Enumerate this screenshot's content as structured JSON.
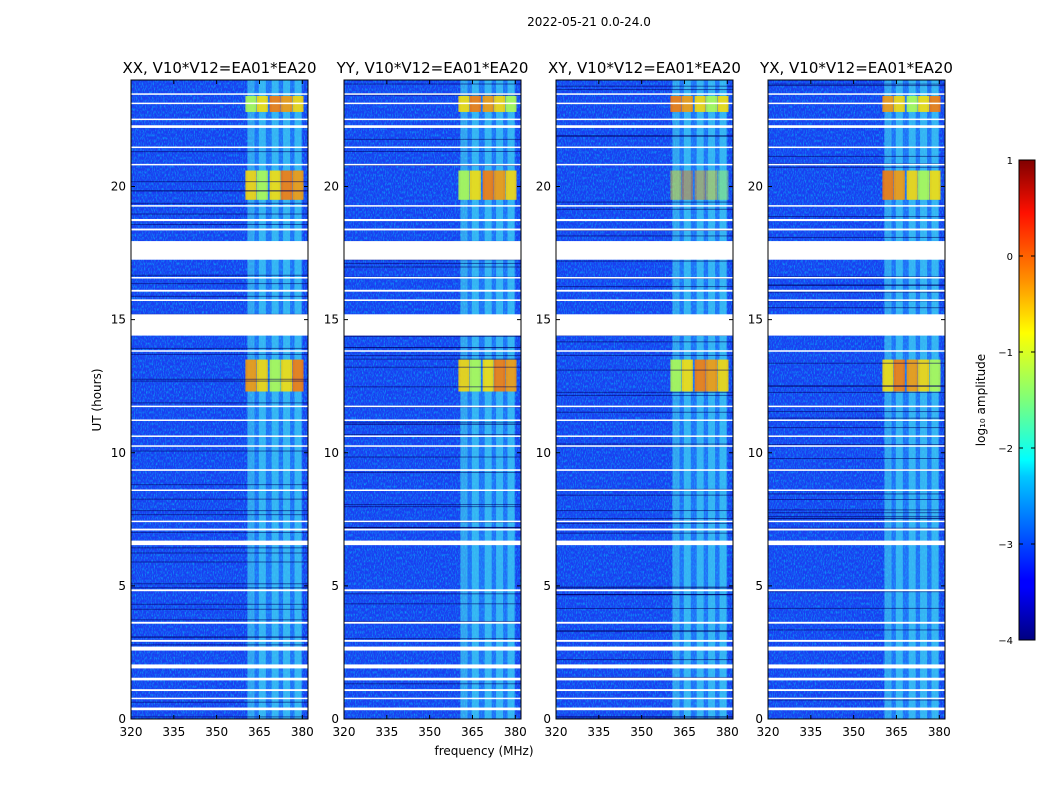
{
  "figure": {
    "suptitle": "2022-05-21 0.0-24.0"
  },
  "chart_data": {
    "type": "heatmap",
    "xlabel": "frequency (MHz)",
    "ylabel": "UT (hours)",
    "xlim": [
      320,
      382
    ],
    "ylim": [
      0,
      24
    ],
    "xticks": [
      "320",
      "335",
      "350",
      "365",
      "380"
    ],
    "yticks": [
      "0",
      "5",
      "10",
      "15",
      "20"
    ],
    "xtick_values": [
      320,
      335,
      350,
      365,
      380
    ],
    "ytick_values": [
      0,
      5,
      10,
      15,
      20
    ],
    "panels": [
      {
        "title": "XX, V10*V12=EA01*EA20",
        "polarization": "XX"
      },
      {
        "title": "YY, V10*V12=EA01*EA20",
        "polarization": "YY"
      },
      {
        "title": "XY, V10*V12=EA01*EA20",
        "polarization": "XY"
      },
      {
        "title": "YX, V10*V12=EA01*EA20",
        "polarization": "YX"
      }
    ],
    "rfi_band_mhz": [
      360,
      380
    ],
    "rfi_channels_mhz": [
      362,
      366,
      370.5,
      374.5,
      378.5
    ],
    "flagged_hours": [
      [
        0.33,
        0.43
      ],
      [
        0.75,
        0.8
      ],
      [
        1.05,
        1.12
      ],
      [
        1.45,
        1.55
      ],
      [
        1.9,
        2.05
      ],
      [
        2.57,
        2.72
      ],
      [
        2.9,
        2.97
      ],
      [
        3.58,
        3.65
      ],
      [
        4.8,
        4.87
      ],
      [
        6.53,
        6.7
      ],
      [
        7.08,
        7.15
      ],
      [
        7.4,
        7.45
      ],
      [
        8.58,
        8.62
      ],
      [
        9.32,
        9.38
      ],
      [
        10.23,
        10.28
      ],
      [
        10.6,
        10.65
      ],
      [
        11.2,
        11.25
      ],
      [
        11.72,
        11.77
      ],
      [
        13.8,
        13.85
      ],
      [
        14.4,
        15.2
      ],
      [
        15.7,
        15.76
      ],
      [
        16.05,
        16.12
      ],
      [
        16.55,
        16.6
      ],
      [
        17.25,
        17.95
      ],
      [
        18.35,
        18.42
      ],
      [
        18.7,
        18.78
      ],
      [
        19.25,
        19.3
      ],
      [
        20.8,
        20.85
      ],
      [
        21.45,
        21.5
      ],
      [
        22.2,
        22.3
      ],
      [
        22.5,
        22.55
      ],
      [
        23.1,
        23.15
      ],
      [
        23.45,
        23.5
      ]
    ],
    "colorbar": {
      "label": "log₁₀ amplitude",
      "ticks": [
        "1",
        "0",
        "−1",
        "−2",
        "−3",
        "−4"
      ],
      "tick_values": [
        1,
        0,
        -1,
        -2,
        -3,
        -4
      ],
      "range": [
        -4,
        1
      ],
      "colormap": "jet"
    }
  }
}
